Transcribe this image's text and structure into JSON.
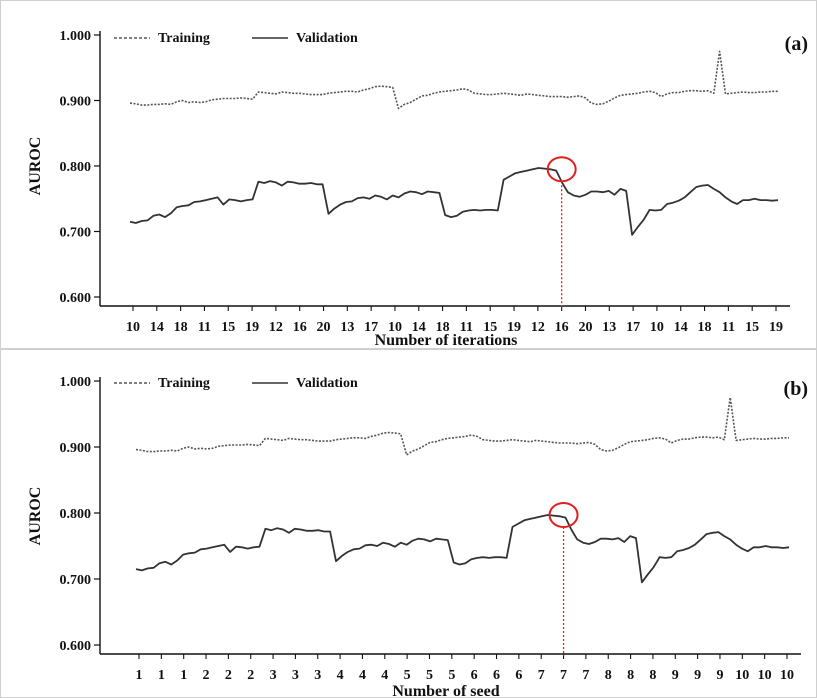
{
  "chart_data": [
    {
      "type": "line",
      "panel_label": "(a)",
      "xlabel": "Number of iterations",
      "ylabel": "AUROC",
      "ylim": [
        0.6,
        1.0
      ],
      "yticks": [
        "0.600",
        "0.700",
        "0.800",
        "0.900",
        "1.000"
      ],
      "x_tick_labels": [
        "10",
        "14",
        "18",
        "11",
        "15",
        "19",
        "12",
        "16",
        "20",
        "13",
        "17",
        "10",
        "14",
        "18",
        "11",
        "15",
        "19",
        "12",
        "16",
        "20",
        "13",
        "17",
        "10",
        "14",
        "18",
        "11",
        "15",
        "19"
      ],
      "legend": {
        "position": "top-left",
        "entries": [
          {
            "label": "Training",
            "style": "dashed"
          },
          {
            "label": "Validation",
            "style": "solid"
          }
        ]
      },
      "highlight": {
        "tick_index": 18,
        "value": 0.795,
        "marker_color": "#e02020"
      },
      "series": [
        {
          "name": "Training",
          "style": "dashed",
          "color": "#555555",
          "values": [
            0.896,
            0.895,
            0.893,
            0.893,
            0.894,
            0.894,
            0.895,
            0.894,
            0.898,
            0.9,
            0.897,
            0.898,
            0.897,
            0.898,
            0.901,
            0.902,
            0.903,
            0.903,
            0.903,
            0.904,
            0.903,
            0.902,
            0.913,
            0.912,
            0.911,
            0.91,
            0.913,
            0.912,
            0.911,
            0.911,
            0.91,
            0.909,
            0.909,
            0.909,
            0.911,
            0.912,
            0.913,
            0.914,
            0.914,
            0.913,
            0.916,
            0.918,
            0.921,
            0.922,
            0.921,
            0.92,
            0.888,
            0.894,
            0.897,
            0.902,
            0.907,
            0.908,
            0.911,
            0.913,
            0.914,
            0.915,
            0.916,
            0.918,
            0.916,
            0.911,
            0.91,
            0.909,
            0.909,
            0.91,
            0.911,
            0.91,
            0.909,
            0.908,
            0.91,
            0.909,
            0.908,
            0.907,
            0.906,
            0.906,
            0.906,
            0.905,
            0.906,
            0.907,
            0.904,
            0.896,
            0.894,
            0.895,
            0.899,
            0.904,
            0.908,
            0.909,
            0.91,
            0.911,
            0.913,
            0.914,
            0.912,
            0.906,
            0.91,
            0.912,
            0.912,
            0.914,
            0.915,
            0.915,
            0.914,
            0.915,
            0.911,
            0.975,
            0.91,
            0.911,
            0.912,
            0.913,
            0.912,
            0.912,
            0.913,
            0.913,
            0.914,
            0.914
          ]
        },
        {
          "name": "Validation",
          "style": "solid",
          "color": "#333333",
          "values": [
            0.715,
            0.713,
            0.716,
            0.717,
            0.724,
            0.726,
            0.722,
            0.728,
            0.737,
            0.739,
            0.74,
            0.745,
            0.746,
            0.748,
            0.75,
            0.752,
            0.741,
            0.749,
            0.748,
            0.746,
            0.748,
            0.749,
            0.776,
            0.774,
            0.777,
            0.775,
            0.77,
            0.776,
            0.775,
            0.773,
            0.773,
            0.774,
            0.772,
            0.772,
            0.727,
            0.735,
            0.741,
            0.745,
            0.746,
            0.751,
            0.752,
            0.75,
            0.755,
            0.753,
            0.749,
            0.755,
            0.752,
            0.758,
            0.761,
            0.76,
            0.757,
            0.761,
            0.76,
            0.759,
            0.725,
            0.722,
            0.724,
            0.73,
            0.732,
            0.733,
            0.732,
            0.733,
            0.733,
            0.732,
            0.779,
            0.784,
            0.789,
            0.791,
            0.793,
            0.795,
            0.797,
            0.796,
            0.795,
            0.793,
            0.775,
            0.76,
            0.755,
            0.753,
            0.756,
            0.761,
            0.761,
            0.76,
            0.762,
            0.756,
            0.765,
            0.762,
            0.695,
            0.707,
            0.718,
            0.733,
            0.732,
            0.733,
            0.742,
            0.744,
            0.747,
            0.752,
            0.76,
            0.768,
            0.77,
            0.771,
            0.765,
            0.76,
            0.752,
            0.746,
            0.742,
            0.748,
            0.748,
            0.75,
            0.748,
            0.748,
            0.747,
            0.748
          ]
        }
      ]
    },
    {
      "type": "line",
      "panel_label": "(b)",
      "xlabel": "Number of seed",
      "ylabel": "AUROC",
      "ylim": [
        0.6,
        1.0
      ],
      "yticks": [
        "0.600",
        "0.700",
        "0.800",
        "0.900",
        "1.000"
      ],
      "x_tick_labels": [
        "1",
        "1",
        "1",
        "2",
        "2",
        "2",
        "3",
        "3",
        "3",
        "4",
        "4",
        "4",
        "5",
        "5",
        "5",
        "6",
        "6",
        "6",
        "7",
        "7",
        "7",
        "8",
        "8",
        "8",
        "9",
        "9",
        "9",
        "10",
        "10",
        "10"
      ],
      "legend": {
        "position": "top-left",
        "entries": [
          {
            "label": "Training",
            "style": "dashed"
          },
          {
            "label": "Validation",
            "style": "solid"
          }
        ]
      },
      "highlight": {
        "tick_index": 19,
        "value": 0.797,
        "marker_color": "#e02020"
      },
      "series": [
        {
          "name": "Training",
          "style": "dashed",
          "color": "#555555",
          "values": [
            0.896,
            0.895,
            0.893,
            0.893,
            0.894,
            0.894,
            0.895,
            0.894,
            0.898,
            0.9,
            0.897,
            0.898,
            0.897,
            0.898,
            0.901,
            0.902,
            0.903,
            0.903,
            0.903,
            0.904,
            0.903,
            0.902,
            0.913,
            0.912,
            0.911,
            0.91,
            0.913,
            0.912,
            0.911,
            0.911,
            0.91,
            0.909,
            0.909,
            0.909,
            0.911,
            0.912,
            0.913,
            0.914,
            0.914,
            0.913,
            0.916,
            0.918,
            0.921,
            0.922,
            0.921,
            0.92,
            0.888,
            0.894,
            0.897,
            0.902,
            0.907,
            0.908,
            0.911,
            0.913,
            0.914,
            0.915,
            0.916,
            0.918,
            0.916,
            0.911,
            0.91,
            0.909,
            0.909,
            0.91,
            0.911,
            0.91,
            0.909,
            0.908,
            0.91,
            0.909,
            0.908,
            0.907,
            0.906,
            0.906,
            0.906,
            0.905,
            0.906,
            0.907,
            0.904,
            0.896,
            0.894,
            0.895,
            0.899,
            0.904,
            0.908,
            0.909,
            0.91,
            0.911,
            0.913,
            0.914,
            0.912,
            0.906,
            0.91,
            0.912,
            0.912,
            0.914,
            0.915,
            0.915,
            0.914,
            0.915,
            0.911,
            0.975,
            0.91,
            0.911,
            0.912,
            0.913,
            0.912,
            0.912,
            0.913,
            0.913,
            0.914,
            0.914
          ]
        },
        {
          "name": "Validation",
          "style": "solid",
          "color": "#333333",
          "values": [
            0.715,
            0.713,
            0.716,
            0.717,
            0.724,
            0.726,
            0.722,
            0.728,
            0.737,
            0.739,
            0.74,
            0.745,
            0.746,
            0.748,
            0.75,
            0.752,
            0.741,
            0.749,
            0.748,
            0.746,
            0.748,
            0.749,
            0.776,
            0.774,
            0.777,
            0.775,
            0.77,
            0.776,
            0.775,
            0.773,
            0.773,
            0.774,
            0.772,
            0.772,
            0.727,
            0.735,
            0.741,
            0.745,
            0.746,
            0.751,
            0.752,
            0.75,
            0.755,
            0.753,
            0.749,
            0.755,
            0.752,
            0.758,
            0.761,
            0.76,
            0.757,
            0.761,
            0.76,
            0.759,
            0.725,
            0.722,
            0.724,
            0.73,
            0.732,
            0.733,
            0.732,
            0.733,
            0.733,
            0.732,
            0.779,
            0.784,
            0.789,
            0.791,
            0.793,
            0.795,
            0.797,
            0.796,
            0.795,
            0.793,
            0.775,
            0.76,
            0.755,
            0.753,
            0.756,
            0.761,
            0.761,
            0.76,
            0.762,
            0.756,
            0.765,
            0.762,
            0.695,
            0.707,
            0.718,
            0.733,
            0.732,
            0.733,
            0.742,
            0.744,
            0.747,
            0.752,
            0.76,
            0.768,
            0.77,
            0.771,
            0.765,
            0.76,
            0.752,
            0.746,
            0.742,
            0.748,
            0.748,
            0.75,
            0.748,
            0.748,
            0.747,
            0.748
          ]
        }
      ]
    }
  ]
}
